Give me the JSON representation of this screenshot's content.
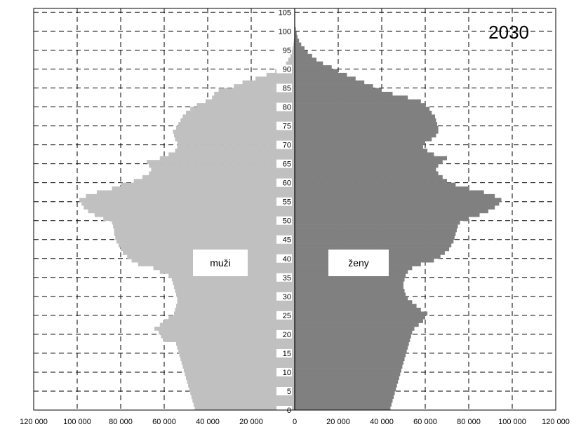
{
  "chart_data": {
    "type": "bar",
    "orientation": "horizontal-population-pyramid",
    "title": "2030",
    "grid": true,
    "xlim": [
      -120000,
      120000
    ],
    "ylim": [
      0,
      106
    ],
    "x_tick_labels": [
      "120 000",
      "100 000",
      "80 000",
      "60 000",
      "40 000",
      "20 000",
      "0",
      "20 000",
      "40 000",
      "60 000",
      "80 000",
      "100 000",
      "120 000"
    ],
    "y_tick_labels": [
      "0",
      "5",
      "10",
      "15",
      "20",
      "25",
      "30",
      "35",
      "40",
      "45",
      "50",
      "55",
      "60",
      "65",
      "70",
      "75",
      "80",
      "85",
      "90",
      "95",
      "100",
      "105"
    ],
    "series": [
      {
        "name": "muži",
        "side": "left",
        "color": "#c0c0c0",
        "values": [
          46000,
          46500,
          47000,
          47500,
          48000,
          48500,
          49000,
          49500,
          50000,
          50500,
          51000,
          51500,
          52000,
          52500,
          53000,
          53500,
          54000,
          54500,
          60000,
          61500,
          62500,
          64500,
          62000,
          60000,
          58000,
          55500,
          55000,
          54500,
          54000,
          54000,
          54500,
          55000,
          55500,
          56000,
          56500,
          58000,
          62000,
          65000,
          72000,
          75000,
          77000,
          79000,
          80000,
          81000,
          82000,
          82500,
          83000,
          83000,
          83500,
          84000,
          88000,
          92000,
          95000,
          97000,
          98000,
          99000,
          96000,
          91000,
          84000,
          80000,
          74000,
          70000,
          67000,
          66000,
          67000,
          68000,
          62000,
          58000,
          55000,
          54000,
          54000,
          55000,
          55500,
          56000,
          54500,
          53500,
          52500,
          51500,
          50000,
          48000,
          45000,
          41000,
          38000,
          37000,
          35000,
          28000,
          24000,
          18000,
          13000,
          9000,
          6000,
          4000,
          3000,
          2000,
          1500,
          1000,
          600,
          400,
          200,
          100,
          50,
          0,
          0,
          0,
          0,
          0,
          0
        ]
      },
      {
        "name": "ženy",
        "side": "right",
        "color": "#808080",
        "values": [
          44000,
          44500,
          45000,
          45500,
          46000,
          46500,
          47000,
          47500,
          48000,
          48500,
          49000,
          49500,
          50000,
          50500,
          51000,
          51500,
          52000,
          52500,
          53000,
          53500,
          54000,
          55000,
          57000,
          59000,
          60000,
          61000,
          58000,
          56000,
          54000,
          52000,
          51000,
          50500,
          50000,
          50000,
          50500,
          51000,
          52000,
          54000,
          58000,
          64000,
          67000,
          69000,
          71000,
          72000,
          73000,
          73500,
          74000,
          74500,
          75000,
          76000,
          80000,
          85000,
          89000,
          92000,
          94000,
          95000,
          92000,
          87000,
          80000,
          74000,
          70000,
          68000,
          66000,
          65000,
          66000,
          68000,
          70000,
          64000,
          61000,
          59000,
          60000,
          63000,
          65000,
          66000,
          66000,
          65500,
          65000,
          64500,
          63000,
          62000,
          60000,
          58000,
          52000,
          45000,
          40000,
          36000,
          32000,
          28000,
          24000,
          20000,
          17000,
          13000,
          10000,
          8000,
          6000,
          4500,
          3000,
          2000,
          1300,
          900,
          500,
          200,
          0,
          0,
          0,
          0,
          0
        ]
      }
    ]
  }
}
